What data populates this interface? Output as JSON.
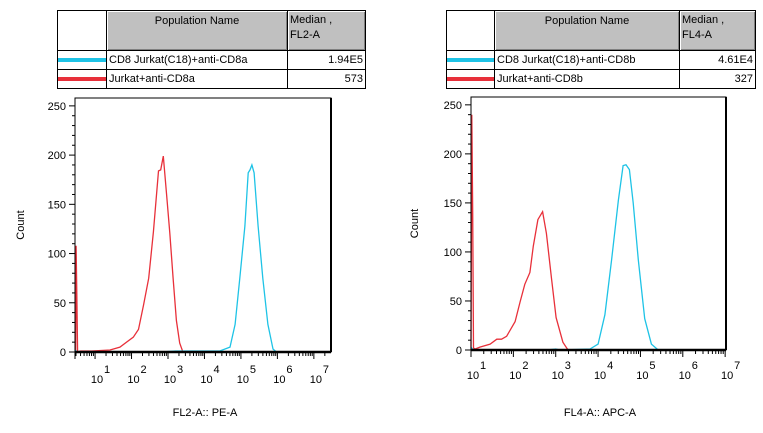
{
  "colors": {
    "cyan": "#1ec3e6",
    "red": "#e8303a",
    "header_bg": "#c0c0c0",
    "axis": "#000000"
  },
  "chart_data": [
    {
      "type": "line",
      "xscale": "log",
      "xlabel": "FL2-A:: PE-A",
      "ylabel": "Count",
      "xlim_log10": [
        0.45,
        7.47
      ],
      "ylim": [
        0,
        258
      ],
      "yticks": [
        "0",
        "50",
        "100",
        "150",
        "200",
        "250"
      ],
      "xticks": [
        {
          "base": "10",
          "exp": "1"
        },
        {
          "base": "10",
          "exp": "2"
        },
        {
          "base": "10",
          "exp": "3"
        },
        {
          "base": "10",
          "exp": "4"
        },
        {
          "base": "10",
          "exp": "5"
        },
        {
          "base": "10",
          "exp": "6"
        },
        {
          "base": "10",
          "exp": "7"
        }
      ],
      "legend": {
        "header_name": "Population Name",
        "header_median_line1": "Median ,",
        "header_median_line2": "FL2-A",
        "rows": [
          {
            "name": "CD8 Jurkat(C18)+anti-CD8a",
            "median": "1.94E5",
            "color": "#1ec3e6"
          },
          {
            "name": "Jurkat+anti-CD8a",
            "median": "573",
            "color": "#e8303a"
          }
        ]
      },
      "series": [
        {
          "color": "#e8303a",
          "x_log10": [
            0.47,
            0.48,
            0.5,
            0.52,
            0.6,
            0.91,
            1.41,
            1.68,
            2.05,
            2.19,
            2.33,
            2.47,
            2.6,
            2.74,
            2.8,
            2.87,
            2.96,
            3.05,
            3.14,
            3.23,
            3.32,
            3.41,
            5.0,
            7.47
          ],
          "y": [
            0,
            108,
            60,
            0,
            1,
            1,
            2,
            5,
            15,
            23,
            48,
            75,
            122,
            184,
            185,
            199,
            161,
            121,
            75,
            32,
            9,
            0,
            0,
            0
          ]
        },
        {
          "color": "#1ec3e6",
          "x_log10": [
            0.45,
            0.5,
            1.0,
            2.8,
            3.2,
            4.42,
            4.7,
            4.84,
            4.97,
            5.11,
            5.2,
            5.25,
            5.3,
            5.36,
            5.47,
            5.6,
            5.74,
            5.88,
            5.97,
            7.47
          ],
          "y": [
            2,
            0,
            0,
            0,
            1,
            1,
            5,
            28,
            75,
            128,
            182,
            185,
            190,
            182,
            128,
            75,
            28,
            3,
            0,
            0
          ]
        }
      ]
    },
    {
      "type": "line",
      "xscale": "log",
      "xlabel": "FL4-A:: APC-A",
      "ylabel": "Count",
      "xlim_log10": [
        1.0,
        7.02
      ],
      "ylim": [
        0,
        258
      ],
      "yticks": [
        "0",
        "50",
        "100",
        "150",
        "200",
        "250"
      ],
      "xticks": [
        {
          "base": "10",
          "exp": "1"
        },
        {
          "base": "10",
          "exp": "2"
        },
        {
          "base": "10",
          "exp": "3"
        },
        {
          "base": "10",
          "exp": "4"
        },
        {
          "base": "10",
          "exp": "5"
        },
        {
          "base": "10",
          "exp": "6"
        },
        {
          "base": "10",
          "exp": "7"
        }
      ],
      "legend": {
        "header_name": "Population Name",
        "header_median_line1": "Median ,",
        "header_median_line2": "FL4-A",
        "rows": [
          {
            "name": "CD8 Jurkat(C18)+anti-CD8b",
            "median": "4.61E4",
            "color": "#1ec3e6"
          },
          {
            "name": "Jurkat+anti-CD8b",
            "median": "327",
            "color": "#e8303a"
          }
        ]
      },
      "series": [
        {
          "color": "#e8303a",
          "x_log10": [
            1.0,
            1.02,
            1.04,
            1.06,
            1.1,
            1.21,
            1.45,
            1.61,
            1.72,
            1.84,
            2.04,
            2.16,
            2.27,
            2.39,
            2.47,
            2.58,
            2.69,
            2.78,
            2.9,
            3.01,
            3.17,
            3.29,
            5.0,
            7.02
          ],
          "y": [
            0,
            240,
            140,
            2,
            1,
            3,
            6,
            11,
            11,
            14,
            29,
            49,
            67,
            79,
            106,
            133,
            141,
            119,
            73,
            33,
            8,
            0,
            0,
            0
          ]
        },
        {
          "color": "#1ec3e6",
          "x_log10": [
            1.0,
            1.05,
            2.8,
            3.0,
            3.1,
            3.81,
            4.0,
            4.16,
            4.32,
            4.48,
            4.59,
            4.66,
            4.74,
            4.83,
            4.95,
            5.1,
            5.26,
            5.42,
            7.02
          ],
          "y": [
            3,
            0,
            0,
            1,
            0,
            1,
            6,
            36,
            92,
            153,
            188,
            189,
            184,
            150,
            92,
            32,
            6,
            0,
            0
          ]
        }
      ]
    }
  ]
}
